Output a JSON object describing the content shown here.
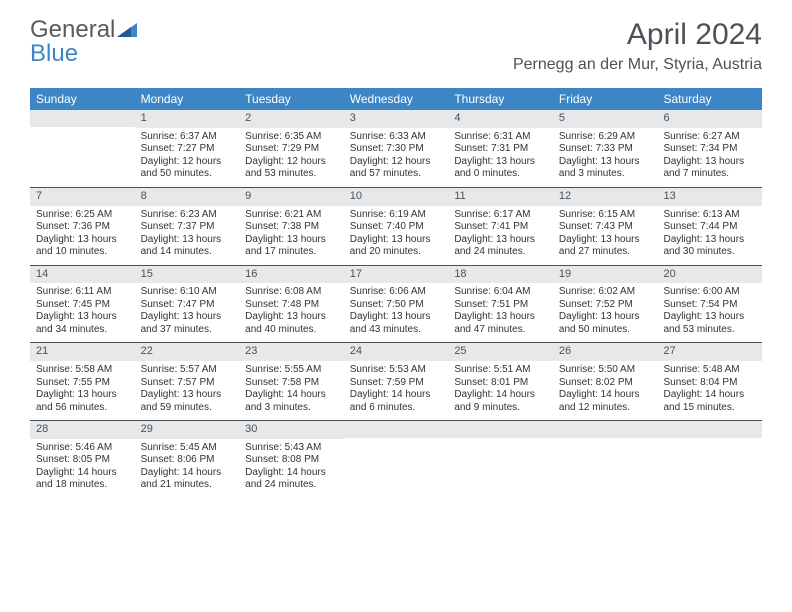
{
  "logo": {
    "textGeneral": "General",
    "textBlue": "Blue"
  },
  "title": "April 2024",
  "location": "Pernegg an der Mur, Styria, Austria",
  "dayNames": [
    "Sunday",
    "Monday",
    "Tuesday",
    "Wednesday",
    "Thursday",
    "Friday",
    "Saturday"
  ],
  "colors": {
    "headerBar": "#3d86c6",
    "dayNumBg": "#e7e8e9",
    "text": "#4a5258"
  },
  "weeks": [
    [
      {
        "n": "",
        "sr": "",
        "ss": "",
        "dl1": "",
        "dl2": ""
      },
      {
        "n": "1",
        "sr": "Sunrise: 6:37 AM",
        "ss": "Sunset: 7:27 PM",
        "dl1": "Daylight: 12 hours",
        "dl2": "and 50 minutes."
      },
      {
        "n": "2",
        "sr": "Sunrise: 6:35 AM",
        "ss": "Sunset: 7:29 PM",
        "dl1": "Daylight: 12 hours",
        "dl2": "and 53 minutes."
      },
      {
        "n": "3",
        "sr": "Sunrise: 6:33 AM",
        "ss": "Sunset: 7:30 PM",
        "dl1": "Daylight: 12 hours",
        "dl2": "and 57 minutes."
      },
      {
        "n": "4",
        "sr": "Sunrise: 6:31 AM",
        "ss": "Sunset: 7:31 PM",
        "dl1": "Daylight: 13 hours",
        "dl2": "and 0 minutes."
      },
      {
        "n": "5",
        "sr": "Sunrise: 6:29 AM",
        "ss": "Sunset: 7:33 PM",
        "dl1": "Daylight: 13 hours",
        "dl2": "and 3 minutes."
      },
      {
        "n": "6",
        "sr": "Sunrise: 6:27 AM",
        "ss": "Sunset: 7:34 PM",
        "dl1": "Daylight: 13 hours",
        "dl2": "and 7 minutes."
      }
    ],
    [
      {
        "n": "7",
        "sr": "Sunrise: 6:25 AM",
        "ss": "Sunset: 7:36 PM",
        "dl1": "Daylight: 13 hours",
        "dl2": "and 10 minutes."
      },
      {
        "n": "8",
        "sr": "Sunrise: 6:23 AM",
        "ss": "Sunset: 7:37 PM",
        "dl1": "Daylight: 13 hours",
        "dl2": "and 14 minutes."
      },
      {
        "n": "9",
        "sr": "Sunrise: 6:21 AM",
        "ss": "Sunset: 7:38 PM",
        "dl1": "Daylight: 13 hours",
        "dl2": "and 17 minutes."
      },
      {
        "n": "10",
        "sr": "Sunrise: 6:19 AM",
        "ss": "Sunset: 7:40 PM",
        "dl1": "Daylight: 13 hours",
        "dl2": "and 20 minutes."
      },
      {
        "n": "11",
        "sr": "Sunrise: 6:17 AM",
        "ss": "Sunset: 7:41 PM",
        "dl1": "Daylight: 13 hours",
        "dl2": "and 24 minutes."
      },
      {
        "n": "12",
        "sr": "Sunrise: 6:15 AM",
        "ss": "Sunset: 7:43 PM",
        "dl1": "Daylight: 13 hours",
        "dl2": "and 27 minutes."
      },
      {
        "n": "13",
        "sr": "Sunrise: 6:13 AM",
        "ss": "Sunset: 7:44 PM",
        "dl1": "Daylight: 13 hours",
        "dl2": "and 30 minutes."
      }
    ],
    [
      {
        "n": "14",
        "sr": "Sunrise: 6:11 AM",
        "ss": "Sunset: 7:45 PM",
        "dl1": "Daylight: 13 hours",
        "dl2": "and 34 minutes."
      },
      {
        "n": "15",
        "sr": "Sunrise: 6:10 AM",
        "ss": "Sunset: 7:47 PM",
        "dl1": "Daylight: 13 hours",
        "dl2": "and 37 minutes."
      },
      {
        "n": "16",
        "sr": "Sunrise: 6:08 AM",
        "ss": "Sunset: 7:48 PM",
        "dl1": "Daylight: 13 hours",
        "dl2": "and 40 minutes."
      },
      {
        "n": "17",
        "sr": "Sunrise: 6:06 AM",
        "ss": "Sunset: 7:50 PM",
        "dl1": "Daylight: 13 hours",
        "dl2": "and 43 minutes."
      },
      {
        "n": "18",
        "sr": "Sunrise: 6:04 AM",
        "ss": "Sunset: 7:51 PM",
        "dl1": "Daylight: 13 hours",
        "dl2": "and 47 minutes."
      },
      {
        "n": "19",
        "sr": "Sunrise: 6:02 AM",
        "ss": "Sunset: 7:52 PM",
        "dl1": "Daylight: 13 hours",
        "dl2": "and 50 minutes."
      },
      {
        "n": "20",
        "sr": "Sunrise: 6:00 AM",
        "ss": "Sunset: 7:54 PM",
        "dl1": "Daylight: 13 hours",
        "dl2": "and 53 minutes."
      }
    ],
    [
      {
        "n": "21",
        "sr": "Sunrise: 5:58 AM",
        "ss": "Sunset: 7:55 PM",
        "dl1": "Daylight: 13 hours",
        "dl2": "and 56 minutes."
      },
      {
        "n": "22",
        "sr": "Sunrise: 5:57 AM",
        "ss": "Sunset: 7:57 PM",
        "dl1": "Daylight: 13 hours",
        "dl2": "and 59 minutes."
      },
      {
        "n": "23",
        "sr": "Sunrise: 5:55 AM",
        "ss": "Sunset: 7:58 PM",
        "dl1": "Daylight: 14 hours",
        "dl2": "and 3 minutes."
      },
      {
        "n": "24",
        "sr": "Sunrise: 5:53 AM",
        "ss": "Sunset: 7:59 PM",
        "dl1": "Daylight: 14 hours",
        "dl2": "and 6 minutes."
      },
      {
        "n": "25",
        "sr": "Sunrise: 5:51 AM",
        "ss": "Sunset: 8:01 PM",
        "dl1": "Daylight: 14 hours",
        "dl2": "and 9 minutes."
      },
      {
        "n": "26",
        "sr": "Sunrise: 5:50 AM",
        "ss": "Sunset: 8:02 PM",
        "dl1": "Daylight: 14 hours",
        "dl2": "and 12 minutes."
      },
      {
        "n": "27",
        "sr": "Sunrise: 5:48 AM",
        "ss": "Sunset: 8:04 PM",
        "dl1": "Daylight: 14 hours",
        "dl2": "and 15 minutes."
      }
    ],
    [
      {
        "n": "28",
        "sr": "Sunrise: 5:46 AM",
        "ss": "Sunset: 8:05 PM",
        "dl1": "Daylight: 14 hours",
        "dl2": "and 18 minutes."
      },
      {
        "n": "29",
        "sr": "Sunrise: 5:45 AM",
        "ss": "Sunset: 8:06 PM",
        "dl1": "Daylight: 14 hours",
        "dl2": "and 21 minutes."
      },
      {
        "n": "30",
        "sr": "Sunrise: 5:43 AM",
        "ss": "Sunset: 8:08 PM",
        "dl1": "Daylight: 14 hours",
        "dl2": "and 24 minutes."
      },
      {
        "n": "",
        "sr": "",
        "ss": "",
        "dl1": "",
        "dl2": ""
      },
      {
        "n": "",
        "sr": "",
        "ss": "",
        "dl1": "",
        "dl2": ""
      },
      {
        "n": "",
        "sr": "",
        "ss": "",
        "dl1": "",
        "dl2": ""
      },
      {
        "n": "",
        "sr": "",
        "ss": "",
        "dl1": "",
        "dl2": ""
      }
    ]
  ]
}
